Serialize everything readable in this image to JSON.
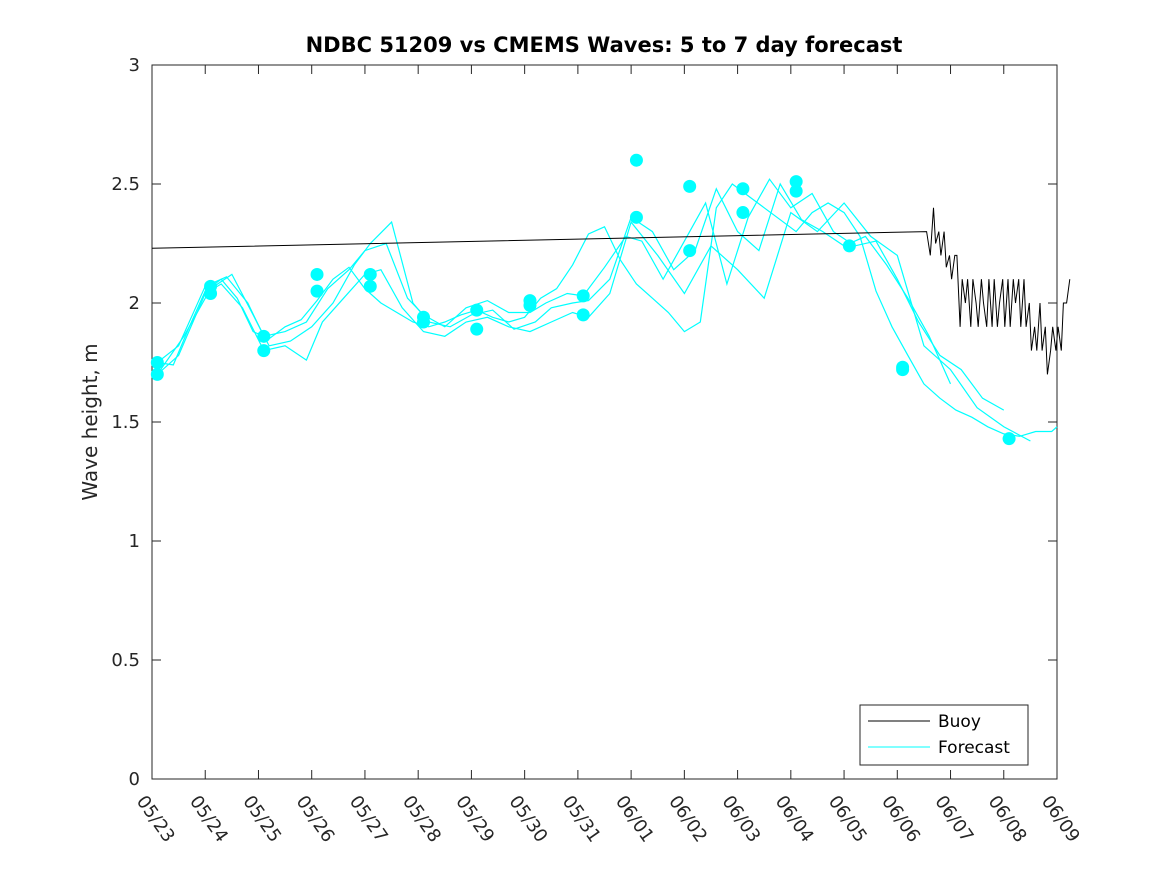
{
  "chart_data": {
    "type": "line",
    "title": "NDBC 51209 vs CMEMS Waves: 5 to 7 day forecast",
    "xlabel": "",
    "ylabel": "Wave height, m",
    "xlim": [
      "05/23",
      "06/09"
    ],
    "ylim": [
      0,
      3
    ],
    "x_ticks": [
      "05/23",
      "05/24",
      "05/25",
      "05/26",
      "05/27",
      "05/28",
      "05/29",
      "05/30",
      "05/31",
      "06/01",
      "06/02",
      "06/03",
      "06/04",
      "06/05",
      "06/06",
      "06/07",
      "06/08",
      "06/09"
    ],
    "y_ticks": [
      "0",
      "0.5",
      "1",
      "1.5",
      "2",
      "2.5",
      "3"
    ],
    "legend_position": "bottom-right",
    "colors": {
      "buoy": "#000000",
      "forecast": "#00ffff"
    },
    "buoy": {
      "name": "Buoy",
      "x": [
        0.0,
        14.55,
        14.62,
        14.68,
        14.72,
        14.78,
        14.82,
        14.88,
        14.92,
        14.98,
        15.02,
        15.08,
        15.12,
        15.18,
        15.22,
        15.28,
        15.32,
        15.38,
        15.42,
        15.48,
        15.52,
        15.58,
        15.62,
        15.68,
        15.72,
        15.78,
        15.82,
        15.88,
        15.92,
        15.98,
        16.02,
        16.08,
        16.12,
        16.18,
        16.22,
        16.28,
        16.32,
        16.38,
        16.42,
        16.48,
        16.52,
        16.58,
        16.62,
        16.68,
        16.72,
        16.78,
        16.82,
        16.88,
        16.92,
        16.98,
        17.02,
        17.08,
        17.12,
        17.18,
        17.24
      ],
      "y": [
        2.23,
        2.3,
        2.2,
        2.4,
        2.25,
        2.3,
        2.2,
        2.3,
        2.15,
        2.2,
        2.1,
        2.2,
        2.2,
        1.9,
        2.1,
        2.0,
        2.1,
        1.9,
        2.1,
        2.0,
        1.9,
        2.1,
        2.0,
        1.9,
        2.1,
        1.9,
        2.1,
        1.9,
        2.0,
        2.1,
        1.9,
        2.1,
        1.9,
        2.1,
        2.0,
        2.1,
        1.9,
        2.1,
        1.9,
        2.0,
        1.8,
        1.9,
        1.8,
        2.0,
        1.8,
        1.9,
        1.7,
        1.8,
        1.9,
        1.8,
        1.9,
        1.8,
        2.0,
        2.0,
        2.1
      ]
    },
    "forecast": {
      "name": "Forecast",
      "series": [
        {
          "x": [
            0.1,
            0.4,
            0.7,
            1.0,
            1.3,
            1.6,
            1.9,
            2.2,
            2.5,
            2.8,
            3.1,
            3.4,
            3.7,
            4.0,
            4.3,
            4.6,
            4.9,
            5.2,
            5.5,
            5.8,
            6.1,
            6.4,
            6.7,
            7.0,
            7.3,
            7.6,
            7.9,
            8.2,
            8.5,
            8.8,
            9.1,
            9.4,
            9.7,
            10.0,
            10.3,
            10.6,
            10.9,
            11.2,
            11.5,
            11.8,
            12.1,
            12.4,
            12.7,
            13.0,
            13.3,
            13.6,
            13.9,
            14.2,
            14.5,
            14.8,
            15.1,
            15.4,
            15.7,
            16.0,
            16.3,
            16.6,
            16.9,
            17.0
          ],
          "y": [
            1.75,
            1.74,
            1.9,
            2.05,
            2.1,
            2.02,
            1.88,
            1.85,
            1.9,
            1.93,
            2.01,
            2.1,
            2.15,
            2.06,
            2.0,
            1.96,
            1.92,
            1.9,
            1.92,
            1.95,
            1.97,
            1.94,
            1.92,
            1.94,
            2.02,
            2.06,
            2.16,
            2.29,
            2.32,
            2.18,
            2.08,
            2.02,
            1.96,
            1.88,
            1.92,
            2.4,
            2.5,
            2.45,
            2.4,
            2.35,
            2.3,
            2.38,
            2.42,
            2.38,
            2.28,
            2.05,
            1.9,
            1.78,
            1.66,
            1.6,
            1.55,
            1.52,
            1.48,
            1.45,
            1.44,
            1.46,
            1.46,
            1.48
          ]
        },
        {
          "x": [
            0.1,
            0.5,
            1.0,
            1.3,
            1.7,
            2.1,
            2.5,
            2.9,
            3.2,
            3.6,
            4.0,
            4.3,
            4.7,
            5.1,
            5.5,
            5.9,
            6.3,
            6.7,
            7.1,
            7.5,
            7.9,
            8.2,
            8.6,
            9.0,
            9.5,
            10.0,
            10.5,
            11.0,
            11.5,
            12.0,
            12.5,
            13.0,
            13.5,
            14.0,
            14.5,
            15.0,
            15.5,
            16.0,
            16.5
          ],
          "y": [
            1.7,
            1.78,
            2.04,
            2.08,
            1.98,
            1.8,
            1.82,
            1.76,
            1.92,
            2.02,
            2.12,
            2.14,
            1.98,
            1.88,
            1.86,
            1.92,
            1.94,
            1.9,
            1.88,
            1.92,
            1.96,
            1.94,
            2.04,
            2.34,
            2.2,
            2.04,
            2.24,
            2.14,
            2.02,
            2.38,
            2.3,
            2.42,
            2.28,
            2.2,
            1.82,
            1.72,
            1.56,
            1.48,
            1.42
          ]
        },
        {
          "x": [
            0.1,
            0.5,
            1.0,
            1.4,
            1.8,
            2.1,
            2.5,
            2.9,
            3.3,
            3.7,
            4.0,
            4.4,
            4.8,
            5.1,
            5.5,
            5.9,
            6.3,
            6.7,
            7.1,
            7.4,
            7.8,
            8.1,
            8.5,
            8.9,
            9.2,
            9.6,
            10.0,
            10.4,
            10.8,
            11.2,
            11.6,
            12.0,
            12.4,
            12.8,
            13.2,
            13.6,
            14.0,
            14.4,
            14.8,
            15.2,
            15.6,
            16.0
          ],
          "y": [
            1.75,
            1.82,
            2.07,
            2.11,
            2.0,
            1.86,
            1.88,
            1.92,
            2.06,
            2.14,
            2.22,
            2.25,
            2.02,
            1.95,
            1.9,
            1.98,
            2.01,
            1.96,
            1.96,
            2.0,
            2.04,
            2.03,
            2.15,
            2.28,
            2.26,
            2.1,
            2.26,
            2.42,
            2.08,
            2.36,
            2.52,
            2.4,
            2.46,
            2.3,
            2.24,
            2.26,
            2.1,
            1.92,
            1.78,
            1.72,
            1.6,
            1.55
          ]
        },
        {
          "x": [
            0.1,
            0.6,
            1.1,
            1.5,
            1.9,
            2.2,
            2.6,
            3.0,
            3.4,
            3.8,
            4.1,
            4.5,
            4.9,
            5.2,
            5.6,
            6.0,
            6.4,
            6.8,
            7.2,
            7.5,
            7.9,
            8.2,
            8.6,
            9.0,
            9.4,
            9.8,
            10.2,
            10.6,
            11.0,
            11.4,
            11.8,
            12.2,
            12.6,
            13.0,
            13.4,
            13.8,
            14.2,
            14.6,
            15.0
          ],
          "y": [
            1.7,
            1.86,
            2.06,
            2.12,
            1.95,
            1.82,
            1.84,
            1.9,
            2.0,
            2.16,
            2.25,
            2.34,
            2.0,
            1.92,
            1.9,
            1.95,
            1.97,
            1.89,
            1.92,
            1.98,
            2.0,
            2.01,
            2.1,
            2.36,
            2.3,
            2.14,
            2.22,
            2.48,
            2.3,
            2.22,
            2.5,
            2.35,
            2.3,
            2.24,
            2.28,
            2.16,
            2.02,
            1.86,
            1.66
          ]
        }
      ],
      "markers": [
        {
          "x": 0.1,
          "y": 1.75
        },
        {
          "x": 0.1,
          "y": 1.7
        },
        {
          "x": 1.1,
          "y": 2.07
        },
        {
          "x": 1.1,
          "y": 2.04
        },
        {
          "x": 2.1,
          "y": 1.86
        },
        {
          "x": 2.1,
          "y": 1.8
        },
        {
          "x": 3.1,
          "y": 2.12
        },
        {
          "x": 3.1,
          "y": 2.05
        },
        {
          "x": 4.1,
          "y": 2.12
        },
        {
          "x": 4.1,
          "y": 2.07
        },
        {
          "x": 5.1,
          "y": 1.94
        },
        {
          "x": 5.1,
          "y": 1.92
        },
        {
          "x": 6.1,
          "y": 1.97
        },
        {
          "x": 6.1,
          "y": 1.89
        },
        {
          "x": 7.1,
          "y": 2.01
        },
        {
          "x": 7.1,
          "y": 1.99
        },
        {
          "x": 8.1,
          "y": 2.03
        },
        {
          "x": 8.1,
          "y": 1.95
        },
        {
          "x": 9.1,
          "y": 2.6
        },
        {
          "x": 9.1,
          "y": 2.36
        },
        {
          "x": 10.1,
          "y": 2.49
        },
        {
          "x": 10.1,
          "y": 2.22
        },
        {
          "x": 11.1,
          "y": 2.48
        },
        {
          "x": 11.1,
          "y": 2.38
        },
        {
          "x": 12.1,
          "y": 2.51
        },
        {
          "x": 12.1,
          "y": 2.47
        },
        {
          "x": 13.1,
          "y": 2.24
        },
        {
          "x": 14.1,
          "y": 1.73
        },
        {
          "x": 14.1,
          "y": 1.72
        },
        {
          "x": 16.1,
          "y": 1.43
        }
      ]
    }
  }
}
